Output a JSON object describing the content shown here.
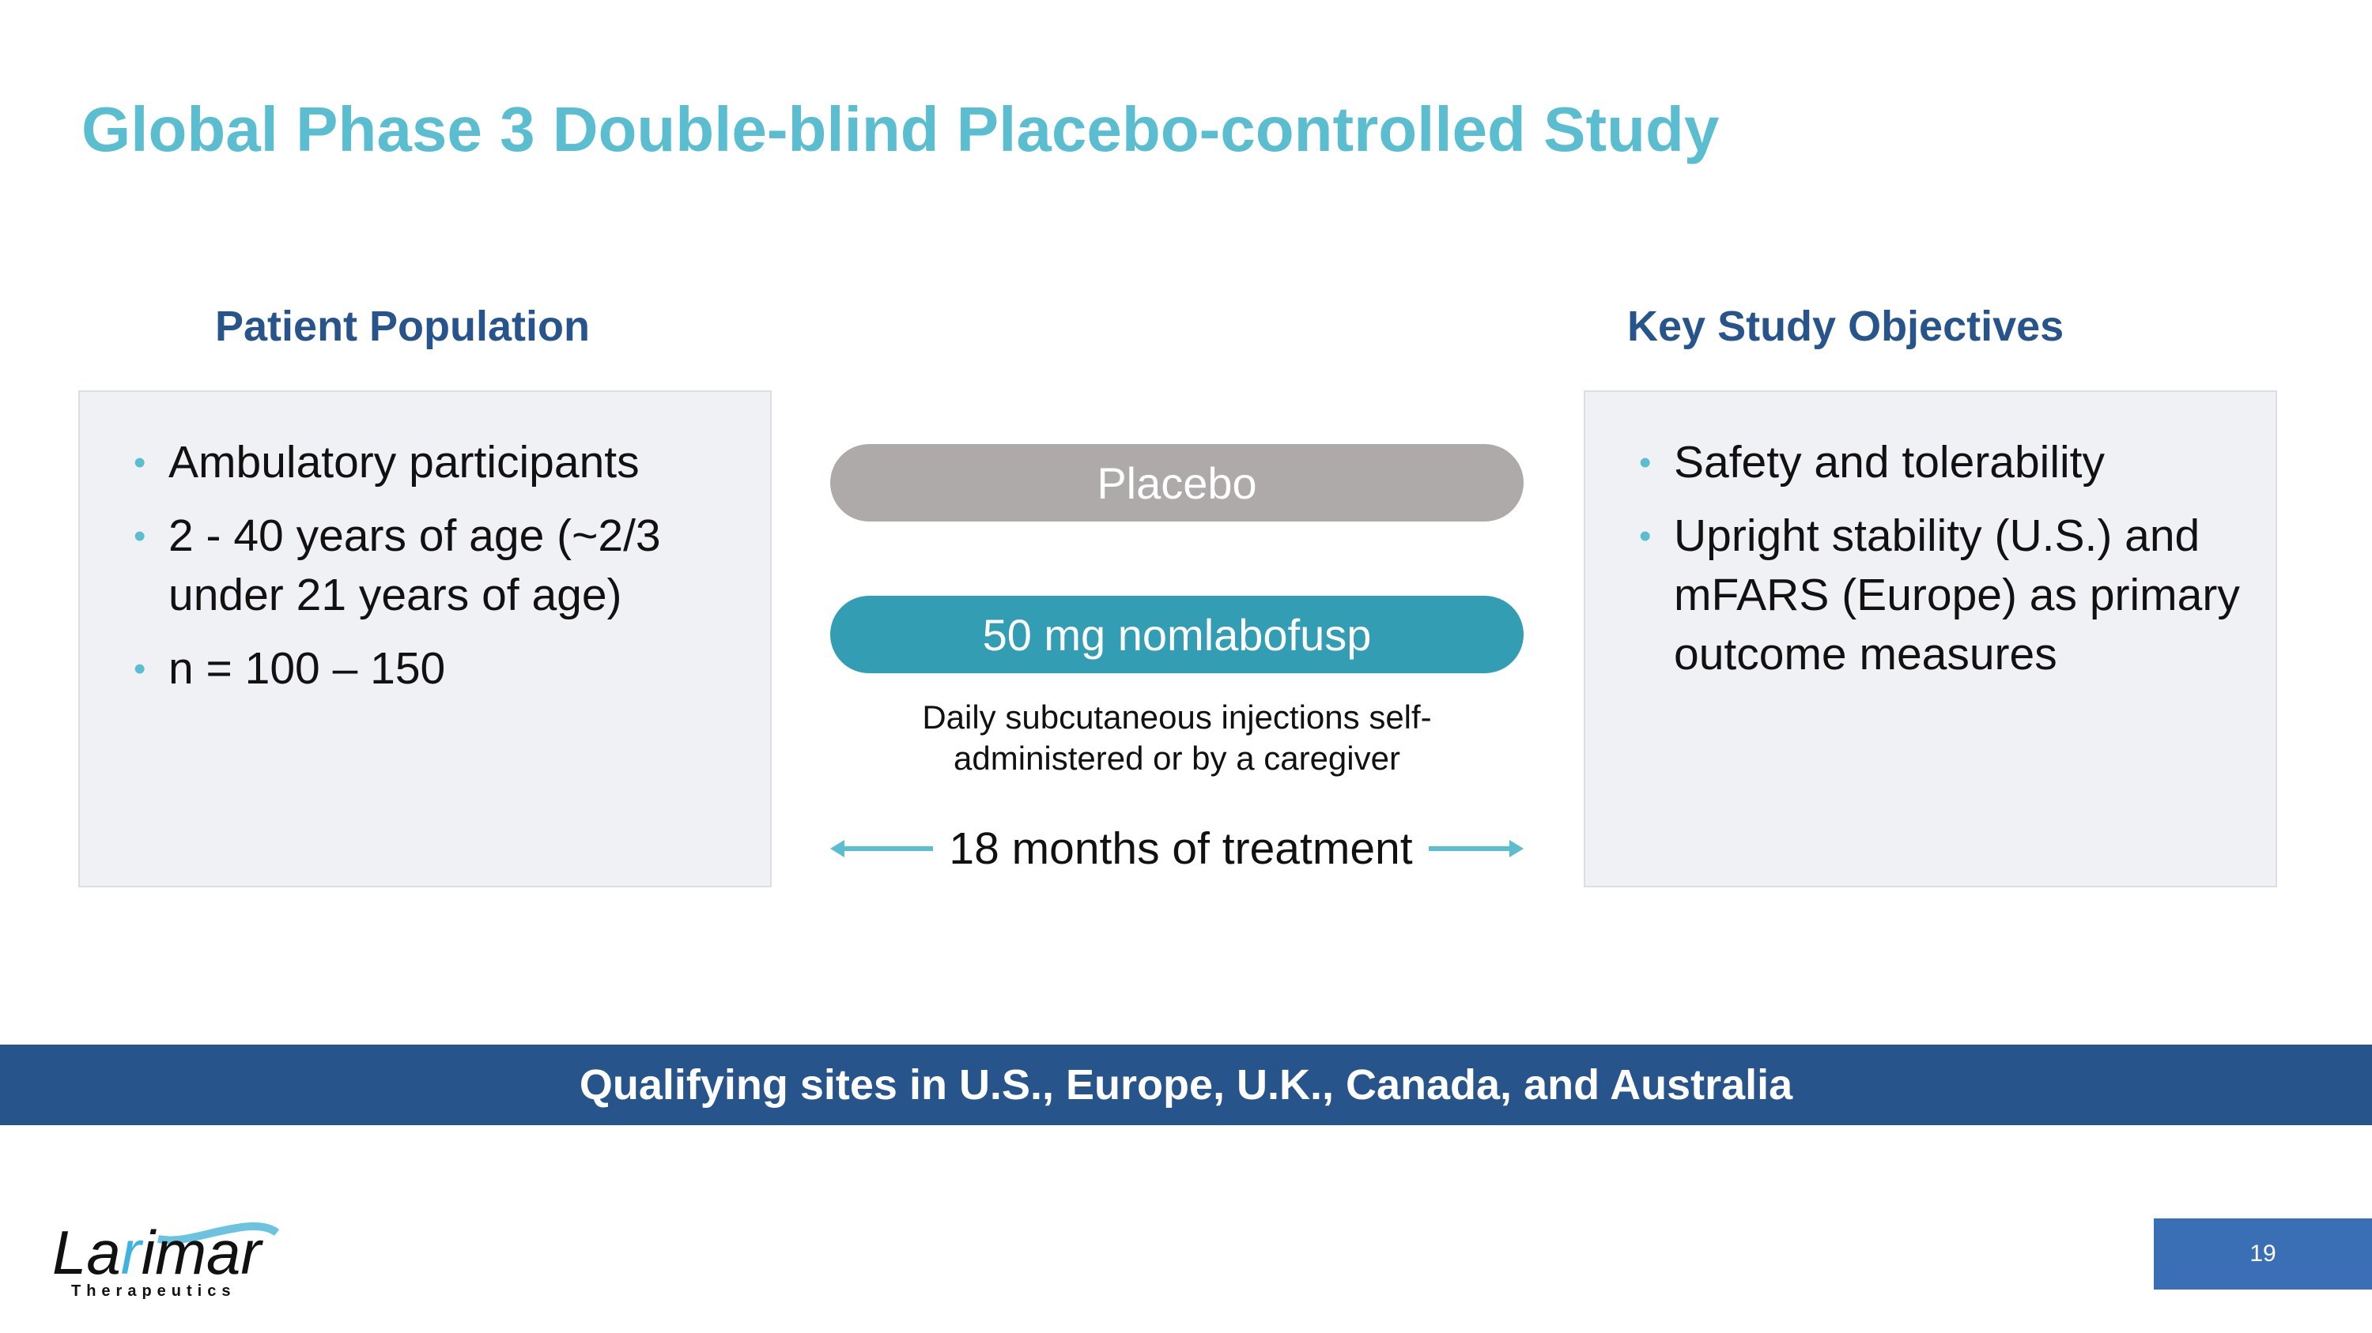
{
  "title": "Global Phase 3 Double-blind Placebo-controlled Study",
  "patient_population": {
    "heading": "Patient Population",
    "bullets": [
      "Ambulatory participants",
      "2 - 40 years of age (~2/3 under 21 years of age)",
      "n = 100 – 150"
    ]
  },
  "objectives": {
    "heading": "Key Study Objectives",
    "bullets": [
      "Safety and tolerability",
      "Upright stability (U.S.) and mFARS (Europe) as primary outcome measures"
    ]
  },
  "arms": {
    "placebo": "Placebo",
    "treatment": "50 mg nomlabofusp"
  },
  "description": "Daily subcutaneous injections self-administered or by a caregiver",
  "duration": "18 months of treatment",
  "banner": "Qualifying sites in U.S., Europe, U.K., Canada, and Australia",
  "page_number": "19",
  "logo": {
    "name": "Larimar",
    "tagline": "Therapeutics"
  },
  "colors": {
    "title": "#5bbdd0",
    "heading": "#27548a",
    "placebo": "#aeaaa9",
    "treatment": "#339db4",
    "banner": "#27548a",
    "page_box": "#3a6fb5"
  }
}
